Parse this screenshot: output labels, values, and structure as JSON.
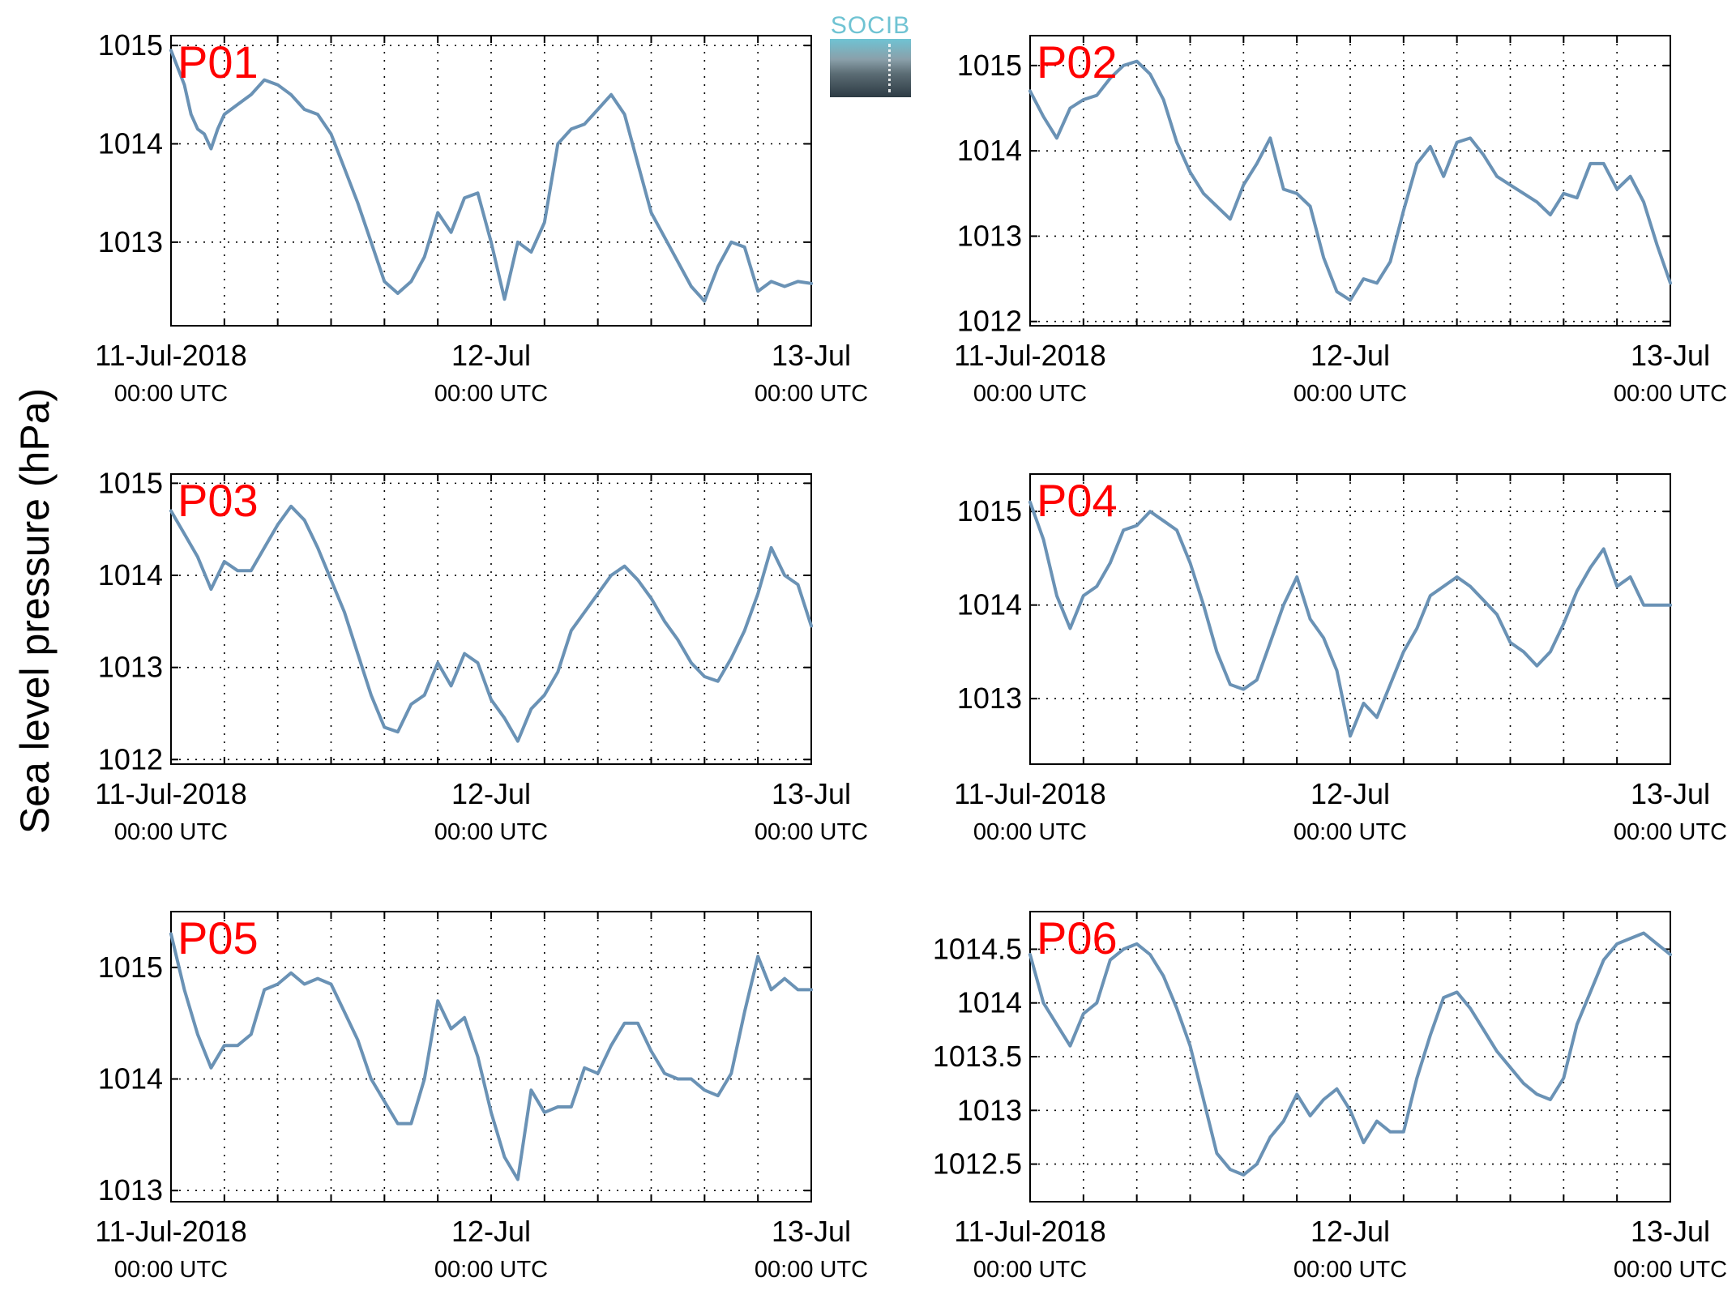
{
  "figure": {
    "ylabel": "Sea level pressure (hPa)",
    "logo_text": "SOCIB",
    "line_color": "#6a92b5",
    "panel_label_color": "#ff0000"
  },
  "chart_data": [
    {
      "type": "line",
      "label": "P01",
      "ylim": [
        1012.15,
        1015.1
      ],
      "yticks": [
        1013,
        1014,
        1015
      ],
      "ytick_labels": [
        "1013",
        "1014",
        "1015"
      ],
      "xlim": [
        0,
        48
      ],
      "xticks": [
        0,
        24,
        48
      ],
      "xtick_labels": [
        [
          "11-Jul-2018",
          "00:00 UTC"
        ],
        [
          "12-Jul",
          "00:00 UTC"
        ],
        [
          "13-Jul",
          "00:00 UTC"
        ]
      ],
      "grid": true,
      "x_hours": [
        0,
        1,
        1.5,
        2,
        2.5,
        3,
        3.5,
        4,
        5,
        6,
        7,
        8,
        9,
        10,
        11,
        12,
        13,
        14,
        15,
        16,
        17,
        18,
        19,
        20,
        21,
        22,
        23,
        24,
        25,
        26,
        27,
        28,
        29,
        30,
        31,
        32,
        33,
        34,
        35,
        36,
        37,
        38,
        39,
        40,
        41,
        42,
        43,
        44,
        45,
        46,
        47,
        48
      ],
      "values": [
        1014.95,
        1014.6,
        1014.3,
        1014.15,
        1014.1,
        1013.95,
        1014.15,
        1014.3,
        1014.4,
        1014.5,
        1014.65,
        1014.6,
        1014.5,
        1014.35,
        1014.3,
        1014.1,
        1013.75,
        1013.4,
        1013.0,
        1012.6,
        1012.48,
        1012.6,
        1012.85,
        1013.3,
        1013.1,
        1013.45,
        1013.5,
        1013.0,
        1012.42,
        1013.0,
        1012.9,
        1013.2,
        1014.0,
        1014.15,
        1014.2,
        1014.35,
        1014.5,
        1014.3,
        1013.8,
        1013.3,
        1013.05,
        1012.8,
        1012.55,
        1012.4,
        1012.75,
        1013.0,
        1012.95,
        1012.5,
        1012.6,
        1012.55,
        1012.6,
        1012.58
      ]
    },
    {
      "type": "line",
      "label": "P02",
      "ylim": [
        1011.95,
        1015.35
      ],
      "yticks": [
        1012,
        1013,
        1014,
        1015
      ],
      "ytick_labels": [
        "1012",
        "1013",
        "1014",
        "1015"
      ],
      "xlim": [
        0,
        48
      ],
      "xticks": [
        0,
        24,
        48
      ],
      "xtick_labels": [
        [
          "11-Jul-2018",
          "00:00 UTC"
        ],
        [
          "12-Jul",
          "00:00 UTC"
        ],
        [
          "13-Jul",
          "00:00 UTC"
        ]
      ],
      "grid": true,
      "x_hours": [
        0,
        1,
        2,
        3,
        4,
        5,
        6,
        7,
        8,
        9,
        10,
        11,
        12,
        13,
        14,
        15,
        16,
        17,
        18,
        19,
        20,
        21,
        22,
        23,
        24,
        25,
        26,
        27,
        28,
        29,
        30,
        31,
        32,
        33,
        34,
        35,
        36,
        37,
        38,
        39,
        40,
        41,
        42,
        43,
        44,
        45,
        46,
        47,
        48
      ],
      "values": [
        1014.7,
        1014.4,
        1014.15,
        1014.5,
        1014.6,
        1014.65,
        1014.85,
        1015.0,
        1015.05,
        1014.9,
        1014.6,
        1014.1,
        1013.75,
        1013.5,
        1013.35,
        1013.2,
        1013.6,
        1013.85,
        1014.15,
        1013.55,
        1013.5,
        1013.35,
        1012.75,
        1012.35,
        1012.25,
        1012.5,
        1012.45,
        1012.7,
        1013.3,
        1013.85,
        1014.05,
        1013.7,
        1014.1,
        1014.15,
        1013.95,
        1013.7,
        1013.6,
        1013.5,
        1013.4,
        1013.25,
        1013.5,
        1013.45,
        1013.85,
        1013.85,
        1013.55,
        1013.7,
        1013.4,
        1012.9,
        1012.45
      ]
    },
    {
      "type": "line",
      "label": "P03",
      "ylim": [
        1011.95,
        1015.1
      ],
      "yticks": [
        1012,
        1013,
        1014,
        1015
      ],
      "ytick_labels": [
        "1012",
        "1013",
        "1014",
        "1015"
      ],
      "xlim": [
        0,
        48
      ],
      "xticks": [
        0,
        24,
        48
      ],
      "xtick_labels": [
        [
          "11-Jul-2018",
          "00:00 UTC"
        ],
        [
          "12-Jul",
          "00:00 UTC"
        ],
        [
          "13-Jul",
          "00:00 UTC"
        ]
      ],
      "grid": true,
      "x_hours": [
        0,
        1,
        2,
        3,
        4,
        5,
        6,
        7,
        8,
        9,
        10,
        11,
        12,
        13,
        14,
        15,
        16,
        17,
        18,
        19,
        20,
        21,
        22,
        23,
        24,
        25,
        26,
        27,
        28,
        29,
        30,
        31,
        32,
        33,
        34,
        35,
        36,
        37,
        38,
        39,
        40,
        41,
        42,
        43,
        44,
        45,
        46,
        47,
        48
      ],
      "values": [
        1014.7,
        1014.45,
        1014.2,
        1013.85,
        1014.15,
        1014.05,
        1014.05,
        1014.3,
        1014.55,
        1014.75,
        1014.6,
        1014.3,
        1013.95,
        1013.6,
        1013.15,
        1012.7,
        1012.35,
        1012.3,
        1012.6,
        1012.7,
        1013.05,
        1012.8,
        1013.15,
        1013.05,
        1012.65,
        1012.45,
        1012.2,
        1012.55,
        1012.7,
        1012.95,
        1013.4,
        1013.6,
        1013.8,
        1014.0,
        1014.1,
        1013.95,
        1013.75,
        1013.5,
        1013.3,
        1013.05,
        1012.9,
        1012.85,
        1013.1,
        1013.4,
        1013.8,
        1014.3,
        1014.0,
        1013.9,
        1013.45
      ]
    },
    {
      "type": "line",
      "label": "P04",
      "ylim": [
        1012.3,
        1015.4
      ],
      "yticks": [
        1013,
        1014,
        1015
      ],
      "ytick_labels": [
        "1013",
        "1014",
        "1015"
      ],
      "xlim": [
        0,
        48
      ],
      "xticks": [
        0,
        24,
        48
      ],
      "xtick_labels": [
        [
          "11-Jul-2018",
          "00:00 UTC"
        ],
        [
          "12-Jul",
          "00:00 UTC"
        ],
        [
          "13-Jul",
          "00:00 UTC"
        ]
      ],
      "grid": true,
      "x_hours": [
        0,
        1,
        2,
        3,
        4,
        5,
        6,
        7,
        8,
        9,
        10,
        11,
        12,
        13,
        14,
        15,
        16,
        17,
        18,
        19,
        20,
        21,
        22,
        23,
        24,
        25,
        26,
        27,
        28,
        29,
        30,
        31,
        32,
        33,
        34,
        35,
        36,
        37,
        38,
        39,
        40,
        41,
        42,
        43,
        44,
        45,
        46,
        47,
        48
      ],
      "values": [
        1015.1,
        1014.7,
        1014.1,
        1013.75,
        1014.1,
        1014.2,
        1014.45,
        1014.8,
        1014.85,
        1015.0,
        1014.9,
        1014.8,
        1014.45,
        1014.0,
        1013.5,
        1013.15,
        1013.1,
        1013.2,
        1013.6,
        1014.0,
        1014.3,
        1013.85,
        1013.65,
        1013.3,
        1012.6,
        1012.95,
        1012.8,
        1013.15,
        1013.5,
        1013.75,
        1014.1,
        1014.2,
        1014.3,
        1014.2,
        1014.05,
        1013.9,
        1013.6,
        1013.5,
        1013.35,
        1013.5,
        1013.8,
        1014.15,
        1014.4,
        1014.6,
        1014.2,
        1014.3,
        1014.0,
        1014.0,
        1014.0
      ]
    },
    {
      "type": "line",
      "label": "P05",
      "ylim": [
        1012.9,
        1015.5
      ],
      "yticks": [
        1013,
        1014,
        1015
      ],
      "ytick_labels": [
        "1013",
        "1014",
        "1015"
      ],
      "xlim": [
        0,
        48
      ],
      "xticks": [
        0,
        24,
        48
      ],
      "xtick_labels": [
        [
          "11-Jul-2018",
          "00:00 UTC"
        ],
        [
          "12-Jul",
          "00:00 UTC"
        ],
        [
          "13-Jul",
          "00:00 UTC"
        ]
      ],
      "grid": true,
      "x_hours": [
        0,
        1,
        2,
        3,
        4,
        5,
        6,
        7,
        8,
        9,
        10,
        11,
        12,
        13,
        14,
        15,
        16,
        17,
        18,
        19,
        20,
        21,
        22,
        23,
        24,
        25,
        26,
        27,
        28,
        29,
        30,
        31,
        32,
        33,
        34,
        35,
        36,
        37,
        38,
        39,
        40,
        41,
        42,
        43,
        44,
        45,
        46,
        47,
        48
      ],
      "values": [
        1015.3,
        1014.8,
        1014.4,
        1014.1,
        1014.3,
        1014.3,
        1014.4,
        1014.8,
        1014.85,
        1014.95,
        1014.85,
        1014.9,
        1014.85,
        1014.6,
        1014.35,
        1014.0,
        1013.8,
        1013.6,
        1013.6,
        1014.0,
        1014.7,
        1014.45,
        1014.55,
        1014.2,
        1013.7,
        1013.3,
        1013.1,
        1013.9,
        1013.7,
        1013.75,
        1013.75,
        1014.1,
        1014.05,
        1014.3,
        1014.5,
        1014.5,
        1014.25,
        1014.05,
        1014.0,
        1014.0,
        1013.9,
        1013.85,
        1014.05,
        1014.6,
        1015.1,
        1014.8,
        1014.9,
        1014.8,
        1014.8
      ]
    },
    {
      "type": "line",
      "label": "P06",
      "ylim": [
        1012.15,
        1014.85
      ],
      "yticks": [
        1012.5,
        1013,
        1013.5,
        1014,
        1014.5
      ],
      "ytick_labels": [
        "1012.5",
        "1013",
        "1013.5",
        "1014",
        "1014.5"
      ],
      "xlim": [
        0,
        48
      ],
      "xticks": [
        0,
        24,
        48
      ],
      "xtick_labels": [
        [
          "11-Jul-2018",
          "00:00 UTC"
        ],
        [
          "12-Jul",
          "00:00 UTC"
        ],
        [
          "13-Jul",
          "00:00 UTC"
        ]
      ],
      "grid": true,
      "x_hours": [
        0,
        1,
        2,
        3,
        4,
        5,
        6,
        7,
        8,
        9,
        10,
        11,
        12,
        13,
        14,
        15,
        16,
        17,
        18,
        19,
        20,
        21,
        22,
        23,
        24,
        25,
        26,
        27,
        28,
        29,
        30,
        31,
        32,
        33,
        34,
        35,
        36,
        37,
        38,
        39,
        40,
        41,
        42,
        43,
        44,
        45,
        46,
        47,
        48
      ],
      "values": [
        1014.45,
        1014.0,
        1013.8,
        1013.6,
        1013.9,
        1014.0,
        1014.4,
        1014.5,
        1014.55,
        1014.45,
        1014.25,
        1013.95,
        1013.6,
        1013.1,
        1012.6,
        1012.45,
        1012.4,
        1012.5,
        1012.75,
        1012.9,
        1013.15,
        1012.95,
        1013.1,
        1013.2,
        1013.0,
        1012.7,
        1012.9,
        1012.8,
        1012.8,
        1013.3,
        1013.7,
        1014.05,
        1014.1,
        1013.95,
        1013.75,
        1013.55,
        1013.4,
        1013.25,
        1013.15,
        1013.1,
        1013.3,
        1013.8,
        1014.1,
        1014.4,
        1014.55,
        1014.6,
        1014.65,
        1014.55,
        1014.45
      ]
    }
  ]
}
